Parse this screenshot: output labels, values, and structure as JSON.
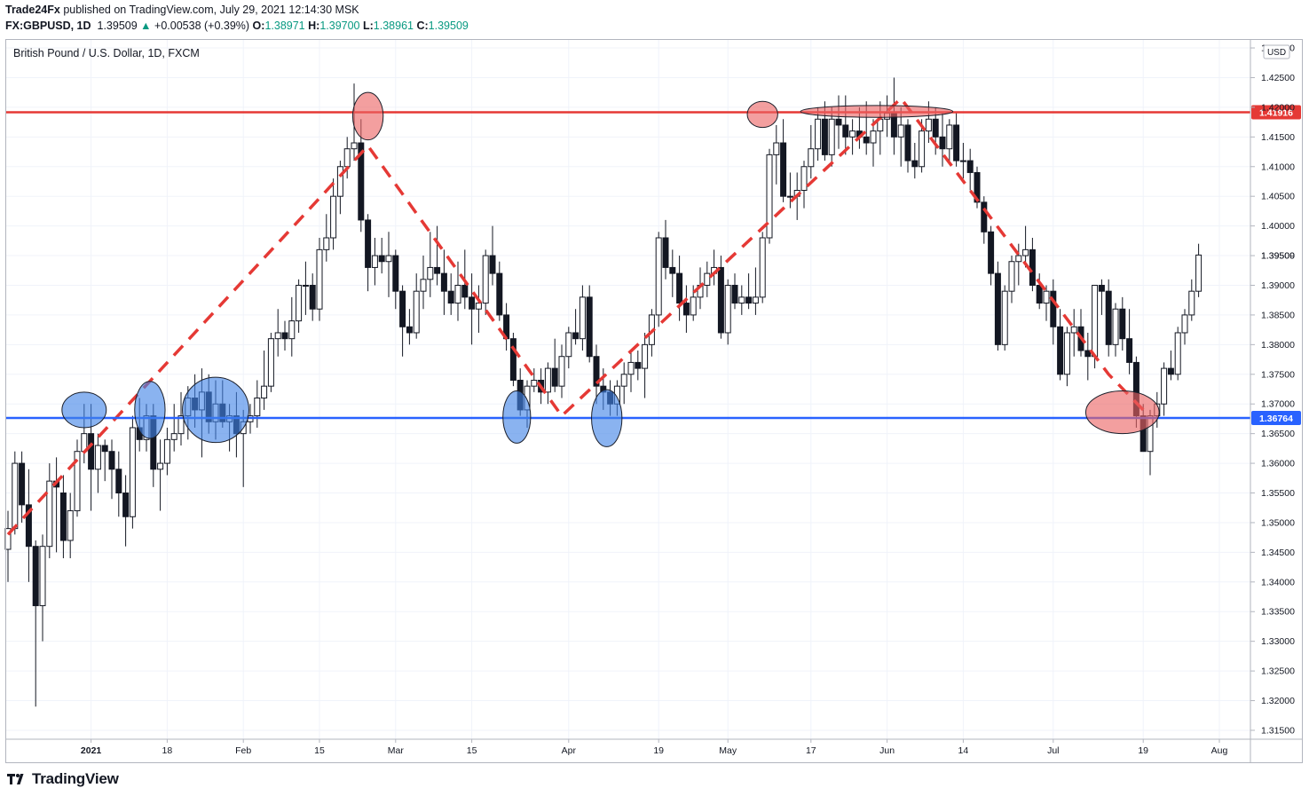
{
  "header": {
    "publisher": "Trade24Fx",
    "published_text": "published on TradingView.com, July 29, 2021 12:14:30 MSK",
    "symbol": "FX:GBPUSD, 1D",
    "last": "1.39509",
    "change": "+0.00538 (+0.39%)",
    "o_label": "O:",
    "o_value": "1.38971",
    "h_label": "H:",
    "h_value": "1.39700",
    "l_label": "L:",
    "l_value": "1.38961",
    "c_label": "C:",
    "c_value": "1.39509"
  },
  "legend_title": "British Pound / U.S. Dollar, 1D, FXCM",
  "footer": {
    "brand": "TradingView"
  },
  "chart_data": {
    "type": "candlestick",
    "currency": "USD",
    "ylim": [
      1.3135,
      1.4315
    ],
    "y_ticks": [
      "1.43000",
      "1.42500",
      "1.42000",
      "1.41500",
      "1.41000",
      "1.40500",
      "1.40000",
      "1.39500",
      "1.39000",
      "1.38500",
      "1.38000",
      "1.37500",
      "1.37000",
      "1.36500",
      "1.36000",
      "1.35500",
      "1.35000",
      "1.34500",
      "1.34000",
      "1.33500",
      "1.33000",
      "1.32500",
      "1.32000",
      "1.31500"
    ],
    "x_ticks": [
      {
        "label": "2021",
        "index": 12
      },
      {
        "label": "18",
        "index": 23
      },
      {
        "label": "Feb",
        "index": 34
      },
      {
        "label": "15",
        "index": 45
      },
      {
        "label": "Mar",
        "index": 56
      },
      {
        "label": "15",
        "index": 67
      },
      {
        "label": "Apr",
        "index": 81
      },
      {
        "label": "19",
        "index": 94
      },
      {
        "label": "May",
        "index": 104
      },
      {
        "label": "17",
        "index": 116
      },
      {
        "label": "Jun",
        "index": 127
      },
      {
        "label": "14",
        "index": 138
      },
      {
        "label": "Jul",
        "index": 151
      },
      {
        "label": "19",
        "index": 164
      },
      {
        "label": "Aug",
        "index": 175
      }
    ],
    "horizontal_lines": [
      {
        "name": "resistance",
        "value": 1.41916,
        "label": "1.41916",
        "color": "#e53935"
      },
      {
        "name": "support",
        "value": 1.36764,
        "label": "1.36764",
        "color": "#2962ff"
      }
    ],
    "current_price": {
      "value": 1.39509,
      "label": "1.39509"
    },
    "trend_dashes": [
      [
        0,
        1.348
      ],
      [
        52,
        1.4135
      ],
      [
        80,
        1.368
      ],
      [
        129,
        1.4215
      ],
      [
        159,
        1.375
      ],
      [
        164,
        1.369
      ]
    ],
    "markers": [
      {
        "color": "blue",
        "i": 11,
        "p": 1.369,
        "ri": 3.2,
        "rp": 0.003
      },
      {
        "color": "blue",
        "i": 20.5,
        "p": 1.369,
        "ri": 2.2,
        "rp": 0.0048
      },
      {
        "color": "blue",
        "i": 30,
        "p": 1.369,
        "ri": 4.8,
        "rp": 0.0055
      },
      {
        "color": "blue",
        "i": 73.5,
        "p": 1.3678,
        "ri": 2.0,
        "rp": 0.0044
      },
      {
        "color": "blue",
        "i": 86.5,
        "p": 1.3676,
        "ri": 2.2,
        "rp": 0.0048
      },
      {
        "color": "red",
        "i": 52,
        "p": 1.4185,
        "ri": 2.2,
        "rp": 0.004
      },
      {
        "color": "red",
        "i": 109,
        "p": 1.4188,
        "ri": 2.2,
        "rp": 0.0022
      },
      {
        "color": "red",
        "i": 125.5,
        "p": 1.4193,
        "ri": 11.0,
        "rp": 0.001
      },
      {
        "color": "red",
        "i": 161,
        "p": 1.3686,
        "ri": 5.3,
        "rp": 0.0036
      }
    ],
    "candles": [
      [
        1.3455,
        1.352,
        1.34,
        1.349
      ],
      [
        1.349,
        1.362,
        1.348,
        1.36
      ],
      [
        1.36,
        1.362,
        1.35,
        1.353
      ],
      [
        1.353,
        1.359,
        1.34,
        1.346
      ],
      [
        1.346,
        1.347,
        1.319,
        1.336
      ],
      [
        1.336,
        1.348,
        1.33,
        1.346
      ],
      [
        1.346,
        1.36,
        1.344,
        1.357
      ],
      [
        1.357,
        1.361,
        1.345,
        1.356
      ],
      [
        1.355,
        1.358,
        1.344,
        1.347
      ],
      [
        1.347,
        1.355,
        1.344,
        1.352
      ],
      [
        1.352,
        1.364,
        1.351,
        1.362
      ],
      [
        1.362,
        1.37,
        1.36,
        1.365
      ],
      [
        1.365,
        1.37,
        1.352,
        1.359
      ],
      [
        1.359,
        1.365,
        1.355,
        1.363
      ],
      [
        1.363,
        1.364,
        1.357,
        1.362
      ],
      [
        1.362,
        1.364,
        1.354,
        1.359
      ],
      [
        1.359,
        1.362,
        1.351,
        1.355
      ],
      [
        1.355,
        1.358,
        1.346,
        1.351
      ],
      [
        1.351,
        1.368,
        1.349,
        1.366
      ],
      [
        1.366,
        1.371,
        1.362,
        1.364
      ],
      [
        1.364,
        1.37,
        1.362,
        1.368
      ],
      [
        1.368,
        1.37,
        1.356,
        1.359
      ],
      [
        1.359,
        1.364,
        1.352,
        1.36
      ],
      [
        1.36,
        1.366,
        1.358,
        1.364
      ],
      [
        1.364,
        1.37,
        1.362,
        1.365
      ],
      [
        1.365,
        1.372,
        1.363,
        1.368
      ],
      [
        1.368,
        1.373,
        1.364,
        1.371
      ],
      [
        1.371,
        1.375,
        1.366,
        1.369
      ],
      [
        1.369,
        1.376,
        1.361,
        1.372
      ],
      [
        1.372,
        1.375,
        1.365,
        1.367
      ],
      [
        1.367,
        1.374,
        1.364,
        1.37
      ],
      [
        1.37,
        1.374,
        1.366,
        1.367
      ],
      [
        1.367,
        1.37,
        1.362,
        1.368
      ],
      [
        1.368,
        1.372,
        1.361,
        1.365
      ],
      [
        1.365,
        1.369,
        1.356,
        1.367
      ],
      [
        1.367,
        1.37,
        1.365,
        1.368
      ],
      [
        1.368,
        1.374,
        1.366,
        1.371
      ],
      [
        1.371,
        1.379,
        1.369,
        1.373
      ],
      [
        1.373,
        1.382,
        1.372,
        1.381
      ],
      [
        1.381,
        1.386,
        1.378,
        1.382
      ],
      [
        1.382,
        1.384,
        1.379,
        1.381
      ],
      [
        1.381,
        1.388,
        1.378,
        1.384
      ],
      [
        1.384,
        1.391,
        1.382,
        1.39
      ],
      [
        1.39,
        1.394,
        1.385,
        1.39
      ],
      [
        1.39,
        1.392,
        1.384,
        1.386
      ],
      [
        1.386,
        1.398,
        1.384,
        1.396
      ],
      [
        1.396,
        1.402,
        1.394,
        1.398
      ],
      [
        1.398,
        1.408,
        1.396,
        1.405
      ],
      [
        1.405,
        1.411,
        1.402,
        1.41
      ],
      [
        1.41,
        1.415,
        1.408,
        1.413
      ],
      [
        1.413,
        1.424,
        1.411,
        1.414
      ],
      [
        1.414,
        1.418,
        1.399,
        1.401
      ],
      [
        1.401,
        1.402,
        1.389,
        1.393
      ],
      [
        1.393,
        1.398,
        1.39,
        1.395
      ],
      [
        1.395,
        1.398,
        1.392,
        1.394
      ],
      [
        1.394,
        1.399,
        1.388,
        1.395
      ],
      [
        1.395,
        1.396,
        1.386,
        1.389
      ],
      [
        1.389,
        1.39,
        1.378,
        1.383
      ],
      [
        1.383,
        1.386,
        1.38,
        1.382
      ],
      [
        1.382,
        1.392,
        1.381,
        1.389
      ],
      [
        1.389,
        1.395,
        1.386,
        1.391
      ],
      [
        1.391,
        1.399,
        1.388,
        1.393
      ],
      [
        1.393,
        1.4,
        1.39,
        1.392
      ],
      [
        1.392,
        1.396,
        1.385,
        1.389
      ],
      [
        1.389,
        1.392,
        1.385,
        1.387
      ],
      [
        1.387,
        1.394,
        1.384,
        1.39
      ],
      [
        1.39,
        1.396,
        1.386,
        1.388
      ],
      [
        1.388,
        1.392,
        1.38,
        1.386
      ],
      [
        1.386,
        1.39,
        1.382,
        1.387
      ],
      [
        1.387,
        1.396,
        1.385,
        1.395
      ],
      [
        1.395,
        1.4,
        1.39,
        1.392
      ],
      [
        1.392,
        1.394,
        1.384,
        1.385
      ],
      [
        1.385,
        1.387,
        1.379,
        1.381
      ],
      [
        1.381,
        1.382,
        1.373,
        1.374
      ],
      [
        1.374,
        1.376,
        1.368,
        1.369
      ],
      [
        1.369,
        1.374,
        1.366,
        1.373
      ],
      [
        1.373,
        1.376,
        1.372,
        1.374
      ],
      [
        1.374,
        1.376,
        1.37,
        1.372
      ],
      [
        1.372,
        1.377,
        1.37,
        1.376
      ],
      [
        1.376,
        1.381,
        1.372,
        1.373
      ],
      [
        1.373,
        1.38,
        1.371,
        1.378
      ],
      [
        1.378,
        1.383,
        1.376,
        1.382
      ],
      [
        1.382,
        1.386,
        1.38,
        1.381
      ],
      [
        1.381,
        1.39,
        1.379,
        1.388
      ],
      [
        1.388,
        1.39,
        1.377,
        1.378
      ],
      [
        1.378,
        1.38,
        1.37,
        1.373
      ],
      [
        1.373,
        1.376,
        1.369,
        1.372
      ],
      [
        1.372,
        1.374,
        1.368,
        1.37
      ],
      [
        1.37,
        1.374,
        1.368,
        1.373
      ],
      [
        1.373,
        1.377,
        1.37,
        1.375
      ],
      [
        1.375,
        1.379,
        1.372,
        1.377
      ],
      [
        1.377,
        1.379,
        1.374,
        1.376
      ],
      [
        1.376,
        1.382,
        1.371,
        1.38
      ],
      [
        1.38,
        1.386,
        1.378,
        1.385
      ],
      [
        1.385,
        1.399,
        1.383,
        1.398
      ],
      [
        1.398,
        1.401,
        1.391,
        1.393
      ],
      [
        1.393,
        1.396,
        1.388,
        1.392
      ],
      [
        1.392,
        1.395,
        1.384,
        1.387
      ],
      [
        1.387,
        1.39,
        1.382,
        1.385
      ],
      [
        1.385,
        1.39,
        1.384,
        1.388
      ],
      [
        1.388,
        1.393,
        1.386,
        1.39
      ],
      [
        1.39,
        1.394,
        1.388,
        1.392
      ],
      [
        1.392,
        1.396,
        1.39,
        1.393
      ],
      [
        1.393,
        1.395,
        1.381,
        1.382
      ],
      [
        1.382,
        1.391,
        1.38,
        1.39
      ],
      [
        1.39,
        1.392,
        1.386,
        1.387
      ],
      [
        1.387,
        1.39,
        1.385,
        1.388
      ],
      [
        1.388,
        1.392,
        1.386,
        1.387
      ],
      [
        1.387,
        1.393,
        1.385,
        1.388
      ],
      [
        1.388,
        1.399,
        1.387,
        1.398
      ],
      [
        1.398,
        1.413,
        1.397,
        1.412
      ],
      [
        1.412,
        1.417,
        1.407,
        1.414
      ],
      [
        1.414,
        1.418,
        1.404,
        1.405
      ],
      [
        1.405,
        1.409,
        1.403,
        1.405
      ],
      [
        1.405,
        1.409,
        1.401,
        1.406
      ],
      [
        1.406,
        1.411,
        1.403,
        1.41
      ],
      [
        1.41,
        1.417,
        1.408,
        1.413
      ],
      [
        1.413,
        1.42,
        1.411,
        1.418
      ],
      [
        1.418,
        1.421,
        1.411,
        1.412
      ],
      [
        1.412,
        1.42,
        1.41,
        1.418
      ],
      [
        1.418,
        1.422,
        1.413,
        1.417
      ],
      [
        1.417,
        1.422,
        1.412,
        1.415
      ],
      [
        1.415,
        1.418,
        1.412,
        1.416
      ],
      [
        1.416,
        1.42,
        1.413,
        1.415
      ],
      [
        1.415,
        1.421,
        1.412,
        1.414
      ],
      [
        1.414,
        1.418,
        1.41,
        1.416
      ],
      [
        1.416,
        1.421,
        1.412,
        1.418
      ],
      [
        1.418,
        1.422,
        1.415,
        1.419
      ],
      [
        1.419,
        1.425,
        1.412,
        1.415
      ],
      [
        1.415,
        1.42,
        1.41,
        1.417
      ],
      [
        1.417,
        1.418,
        1.409,
        1.411
      ],
      [
        1.411,
        1.414,
        1.408,
        1.41
      ],
      [
        1.41,
        1.418,
        1.409,
        1.416
      ],
      [
        1.416,
        1.421,
        1.414,
        1.418
      ],
      [
        1.418,
        1.42,
        1.412,
        1.415
      ],
      [
        1.415,
        1.419,
        1.41,
        1.413
      ],
      [
        1.413,
        1.418,
        1.411,
        1.417
      ],
      [
        1.417,
        1.419,
        1.41,
        1.411
      ],
      [
        1.411,
        1.414,
        1.408,
        1.411
      ],
      [
        1.411,
        1.413,
        1.406,
        1.409
      ],
      [
        1.409,
        1.41,
        1.403,
        1.404
      ],
      [
        1.404,
        1.405,
        1.397,
        1.399
      ],
      [
        1.399,
        1.4,
        1.39,
        1.392
      ],
      [
        1.392,
        1.394,
        1.379,
        1.38
      ],
      [
        1.38,
        1.39,
        1.379,
        1.389
      ],
      [
        1.389,
        1.395,
        1.387,
        1.394
      ],
      [
        1.394,
        1.397,
        1.39,
        1.395
      ],
      [
        1.395,
        1.4,
        1.393,
        1.396
      ],
      [
        1.396,
        1.398,
        1.389,
        1.39
      ],
      [
        1.39,
        1.392,
        1.386,
        1.387
      ],
      [
        1.387,
        1.39,
        1.384,
        1.389
      ],
      [
        1.389,
        1.391,
        1.38,
        1.383
      ],
      [
        1.383,
        1.386,
        1.374,
        1.375
      ],
      [
        1.375,
        1.383,
        1.373,
        1.382
      ],
      [
        1.382,
        1.386,
        1.378,
        1.383
      ],
      [
        1.383,
        1.386,
        1.378,
        1.379
      ],
      [
        1.379,
        1.382,
        1.374,
        1.378
      ],
      [
        1.378,
        1.39,
        1.376,
        1.39
      ],
      [
        1.39,
        1.391,
        1.385,
        1.389
      ],
      [
        1.389,
        1.391,
        1.378,
        1.38
      ],
      [
        1.38,
        1.387,
        1.378,
        1.386
      ],
      [
        1.386,
        1.388,
        1.379,
        1.381
      ],
      [
        1.381,
        1.386,
        1.375,
        1.377
      ],
      [
        1.377,
        1.378,
        1.366,
        1.368
      ],
      [
        1.368,
        1.37,
        1.362,
        1.362
      ],
      [
        1.362,
        1.369,
        1.358,
        1.368
      ],
      [
        1.368,
        1.372,
        1.366,
        1.37
      ],
      [
        1.37,
        1.377,
        1.368,
        1.376
      ],
      [
        1.376,
        1.379,
        1.374,
        1.375
      ],
      [
        1.375,
        1.383,
        1.374,
        1.382
      ],
      [
        1.382,
        1.386,
        1.38,
        1.385
      ],
      [
        1.385,
        1.391,
        1.384,
        1.389
      ],
      [
        1.389,
        1.397,
        1.388,
        1.3951
      ]
    ]
  }
}
